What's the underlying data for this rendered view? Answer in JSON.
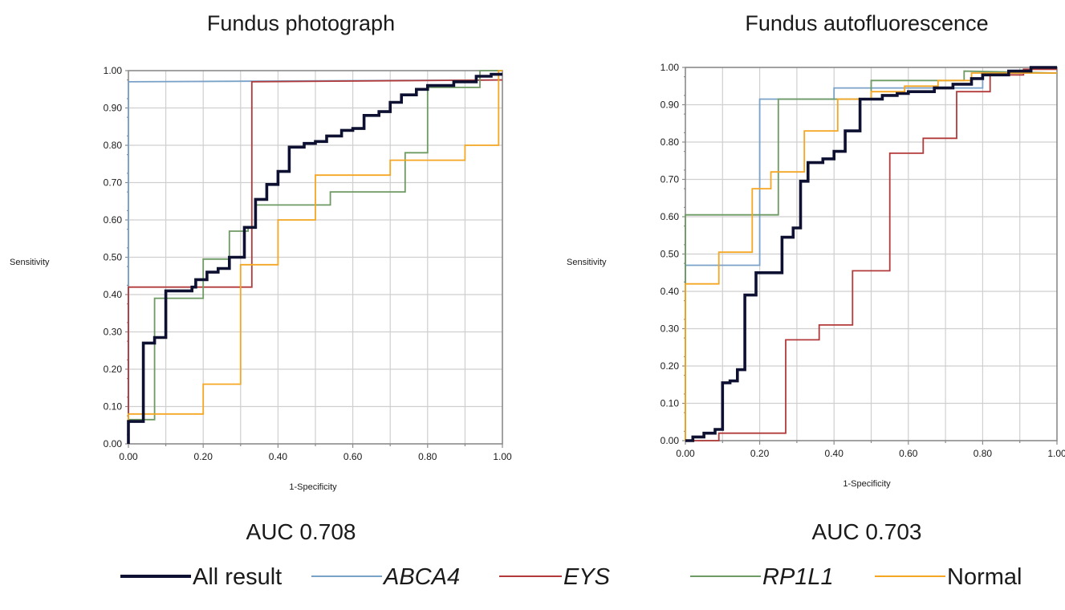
{
  "chart_data": [
    {
      "type": "line",
      "title": "Fundus photograph",
      "xlabel": "1-Specificity",
      "ylabel": "Sensitivity",
      "xlim": [
        0,
        1
      ],
      "ylim": [
        0,
        1
      ],
      "x_ticks": [
        "0.00",
        "0.20",
        "0.40",
        "0.60",
        "0.80",
        "1.00"
      ],
      "y_ticks": [
        "0.00",
        "0.10",
        "0.20",
        "0.30",
        "0.40",
        "0.50",
        "0.60",
        "0.70",
        "0.80",
        "0.90",
        "1.00"
      ],
      "grid": true,
      "annotation": "AUC 0.708",
      "series": [
        {
          "name": "All result",
          "color": "#0d1030",
          "points": [
            [
              0,
              0
            ],
            [
              0,
              0.06
            ],
            [
              0.04,
              0.06
            ],
            [
              0.04,
              0.27
            ],
            [
              0.07,
              0.27
            ],
            [
              0.07,
              0.285
            ],
            [
              0.1,
              0.285
            ],
            [
              0.1,
              0.41
            ],
            [
              0.17,
              0.41
            ],
            [
              0.17,
              0.42
            ],
            [
              0.18,
              0.42
            ],
            [
              0.18,
              0.44
            ],
            [
              0.21,
              0.44
            ],
            [
              0.21,
              0.46
            ],
            [
              0.24,
              0.46
            ],
            [
              0.24,
              0.47
            ],
            [
              0.27,
              0.47
            ],
            [
              0.27,
              0.5
            ],
            [
              0.31,
              0.5
            ],
            [
              0.31,
              0.58
            ],
            [
              0.34,
              0.58
            ],
            [
              0.34,
              0.655
            ],
            [
              0.37,
              0.655
            ],
            [
              0.37,
              0.695
            ],
            [
              0.4,
              0.695
            ],
            [
              0.4,
              0.73
            ],
            [
              0.43,
              0.73
            ],
            [
              0.43,
              0.795
            ],
            [
              0.47,
              0.795
            ],
            [
              0.47,
              0.805
            ],
            [
              0.5,
              0.805
            ],
            [
              0.5,
              0.81
            ],
            [
              0.53,
              0.81
            ],
            [
              0.53,
              0.825
            ],
            [
              0.57,
              0.825
            ],
            [
              0.57,
              0.84
            ],
            [
              0.6,
              0.84
            ],
            [
              0.6,
              0.845
            ],
            [
              0.63,
              0.845
            ],
            [
              0.63,
              0.88
            ],
            [
              0.67,
              0.88
            ],
            [
              0.67,
              0.89
            ],
            [
              0.7,
              0.89
            ],
            [
              0.7,
              0.915
            ],
            [
              0.73,
              0.915
            ],
            [
              0.73,
              0.935
            ],
            [
              0.77,
              0.935
            ],
            [
              0.77,
              0.95
            ],
            [
              0.8,
              0.95
            ],
            [
              0.8,
              0.96
            ],
            [
              0.87,
              0.96
            ],
            [
              0.87,
              0.97
            ],
            [
              0.93,
              0.97
            ],
            [
              0.93,
              0.985
            ],
            [
              0.97,
              0.985
            ],
            [
              0.97,
              0.99
            ],
            [
              1.0,
              0.99
            ]
          ]
        },
        {
          "name": "ABCA4",
          "color": "#7aa2c8",
          "points": [
            [
              0,
              0
            ],
            [
              0,
              0.97
            ],
            [
              1.0,
              0.975
            ]
          ]
        },
        {
          "name": "EYS",
          "color": "#b23a3a",
          "points": [
            [
              0,
              0
            ],
            [
              0,
              0.42
            ],
            [
              0.33,
              0.42
            ],
            [
              0.33,
              0.97
            ],
            [
              1.0,
              0.975
            ]
          ]
        },
        {
          "name": "RP1L1",
          "color": "#6e9a63",
          "points": [
            [
              0,
              0
            ],
            [
              0,
              0.065
            ],
            [
              0.07,
              0.065
            ],
            [
              0.07,
              0.39
            ],
            [
              0.14,
              0.39
            ],
            [
              0.14,
              0.39
            ],
            [
              0.2,
              0.39
            ],
            [
              0.2,
              0.495
            ],
            [
              0.27,
              0.495
            ],
            [
              0.27,
              0.57
            ],
            [
              0.32,
              0.57
            ],
            [
              0.32,
              0.58
            ],
            [
              0.34,
              0.58
            ],
            [
              0.34,
              0.64
            ],
            [
              0.54,
              0.64
            ],
            [
              0.54,
              0.675
            ],
            [
              0.74,
              0.675
            ],
            [
              0.74,
              0.78
            ],
            [
              0.8,
              0.78
            ],
            [
              0.8,
              0.955
            ],
            [
              0.94,
              0.955
            ],
            [
              0.94,
              1.0
            ],
            [
              1.0,
              1.0
            ]
          ]
        },
        {
          "name": "Normal",
          "color": "#f5a623",
          "points": [
            [
              0,
              0
            ],
            [
              0,
              0.08
            ],
            [
              0.2,
              0.08
            ],
            [
              0.2,
              0.16
            ],
            [
              0.3,
              0.16
            ],
            [
              0.3,
              0.48
            ],
            [
              0.4,
              0.48
            ],
            [
              0.4,
              0.6
            ],
            [
              0.5,
              0.6
            ],
            [
              0.5,
              0.72
            ],
            [
              0.7,
              0.72
            ],
            [
              0.7,
              0.76
            ],
            [
              0.9,
              0.76
            ],
            [
              0.9,
              0.8
            ],
            [
              0.99,
              0.8
            ],
            [
              0.99,
              1.0
            ],
            [
              1.0,
              1.0
            ]
          ]
        }
      ]
    },
    {
      "type": "line",
      "title": "Fundus autofluorescence",
      "xlabel": "1-Specificity",
      "ylabel": "Sensitivity",
      "xlim": [
        0,
        1
      ],
      "ylim": [
        0,
        1
      ],
      "x_ticks": [
        "0.00",
        "0.20",
        "0.40",
        "0.60",
        "0.80",
        "1.00"
      ],
      "y_ticks": [
        "0.00",
        "0.10",
        "0.20",
        "0.30",
        "0.40",
        "0.50",
        "0.60",
        "0.70",
        "0.80",
        "0.90",
        "1.00"
      ],
      "grid": true,
      "annotation": "AUC 0.703",
      "series": [
        {
          "name": "All result",
          "color": "#0d1030",
          "points": [
            [
              0,
              0
            ],
            [
              0.02,
              0
            ],
            [
              0.02,
              0.01
            ],
            [
              0.05,
              0.01
            ],
            [
              0.05,
              0.02
            ],
            [
              0.08,
              0.02
            ],
            [
              0.08,
              0.03
            ],
            [
              0.1,
              0.03
            ],
            [
              0.1,
              0.155
            ],
            [
              0.12,
              0.155
            ],
            [
              0.12,
              0.16
            ],
            [
              0.14,
              0.16
            ],
            [
              0.14,
              0.19
            ],
            [
              0.16,
              0.19
            ],
            [
              0.16,
              0.39
            ],
            [
              0.19,
              0.39
            ],
            [
              0.19,
              0.45
            ],
            [
              0.26,
              0.45
            ],
            [
              0.26,
              0.545
            ],
            [
              0.29,
              0.545
            ],
            [
              0.29,
              0.57
            ],
            [
              0.31,
              0.57
            ],
            [
              0.31,
              0.695
            ],
            [
              0.33,
              0.695
            ],
            [
              0.33,
              0.745
            ],
            [
              0.37,
              0.745
            ],
            [
              0.37,
              0.755
            ],
            [
              0.4,
              0.755
            ],
            [
              0.4,
              0.775
            ],
            [
              0.43,
              0.775
            ],
            [
              0.43,
              0.83
            ],
            [
              0.47,
              0.83
            ],
            [
              0.47,
              0.915
            ],
            [
              0.53,
              0.915
            ],
            [
              0.53,
              0.925
            ],
            [
              0.57,
              0.925
            ],
            [
              0.57,
              0.93
            ],
            [
              0.6,
              0.93
            ],
            [
              0.6,
              0.935
            ],
            [
              0.67,
              0.935
            ],
            [
              0.67,
              0.945
            ],
            [
              0.72,
              0.945
            ],
            [
              0.72,
              0.955
            ],
            [
              0.77,
              0.955
            ],
            [
              0.77,
              0.97
            ],
            [
              0.8,
              0.97
            ],
            [
              0.8,
              0.98
            ],
            [
              0.87,
              0.98
            ],
            [
              0.87,
              0.99
            ],
            [
              0.93,
              0.99
            ],
            [
              0.93,
              1.0
            ],
            [
              1.0,
              1.0
            ]
          ]
        },
        {
          "name": "ABCA4",
          "color": "#7aa2c8",
          "points": [
            [
              0,
              0
            ],
            [
              0,
              0.47
            ],
            [
              0.2,
              0.47
            ],
            [
              0.2,
              0.915
            ],
            [
              0.4,
              0.915
            ],
            [
              0.4,
              0.945
            ],
            [
              0.8,
              0.945
            ],
            [
              0.8,
              0.985
            ],
            [
              1.0,
              0.985
            ]
          ]
        },
        {
          "name": "EYS",
          "color": "#b23a3a",
          "points": [
            [
              0,
              0
            ],
            [
              0.09,
              0
            ],
            [
              0.09,
              0.02
            ],
            [
              0.27,
              0.02
            ],
            [
              0.27,
              0.27
            ],
            [
              0.36,
              0.27
            ],
            [
              0.36,
              0.31
            ],
            [
              0.45,
              0.31
            ],
            [
              0.45,
              0.455
            ],
            [
              0.55,
              0.455
            ],
            [
              0.55,
              0.77
            ],
            [
              0.64,
              0.77
            ],
            [
              0.64,
              0.81
            ],
            [
              0.73,
              0.81
            ],
            [
              0.73,
              0.935
            ],
            [
              0.82,
              0.935
            ],
            [
              0.82,
              0.98
            ],
            [
              0.91,
              0.98
            ],
            [
              0.91,
              0.995
            ],
            [
              1.0,
              0.995
            ]
          ]
        },
        {
          "name": "RP1L1",
          "color": "#6e9a63",
          "points": [
            [
              0,
              0
            ],
            [
              0,
              0.605
            ],
            [
              0.25,
              0.605
            ],
            [
              0.25,
              0.915
            ],
            [
              0.5,
              0.915
            ],
            [
              0.5,
              0.965
            ],
            [
              0.75,
              0.965
            ],
            [
              0.75,
              0.99
            ],
            [
              1.0,
              0.985
            ]
          ]
        },
        {
          "name": "Normal",
          "color": "#f5a623",
          "points": [
            [
              0,
              0
            ],
            [
              0,
              0.42
            ],
            [
              0.09,
              0.42
            ],
            [
              0.09,
              0.505
            ],
            [
              0.18,
              0.505
            ],
            [
              0.18,
              0.675
            ],
            [
              0.23,
              0.675
            ],
            [
              0.23,
              0.72
            ],
            [
              0.32,
              0.72
            ],
            [
              0.32,
              0.83
            ],
            [
              0.41,
              0.83
            ],
            [
              0.41,
              0.915
            ],
            [
              0.5,
              0.915
            ],
            [
              0.5,
              0.935
            ],
            [
              0.59,
              0.935
            ],
            [
              0.59,
              0.95
            ],
            [
              0.68,
              0.95
            ],
            [
              0.68,
              0.965
            ],
            [
              0.77,
              0.965
            ],
            [
              0.77,
              0.985
            ],
            [
              1.0,
              0.985
            ]
          ]
        }
      ]
    }
  ],
  "legend": {
    "placement": "bottom",
    "items": [
      {
        "label": "All result",
        "color": "#0d1030",
        "italic": false,
        "bold_line": true
      },
      {
        "label": "ABCA4",
        "color": "#7aa2c8",
        "italic": true,
        "bold_line": false
      },
      {
        "label": "EYS",
        "color": "#b23a3a",
        "italic": true,
        "bold_line": false
      },
      {
        "label": "RP1L1",
        "color": "#6e9a63",
        "italic": true,
        "bold_line": false
      },
      {
        "label": "Normal",
        "color": "#f5a623",
        "italic": false,
        "bold_line": false
      }
    ]
  }
}
